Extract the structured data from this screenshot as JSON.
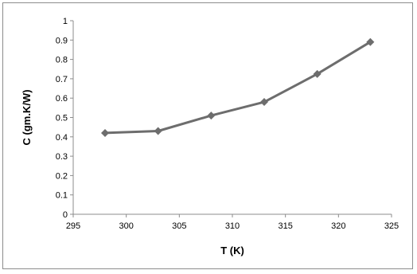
{
  "chart_data": {
    "type": "line",
    "title": "",
    "xlabel": "T (K)",
    "ylabel": "C  (gm.K/W)",
    "xlim": [
      295,
      325
    ],
    "ylim": [
      0,
      1
    ],
    "xticks": [
      295,
      300,
      305,
      310,
      315,
      320,
      325
    ],
    "yticks": [
      0,
      0.1,
      0.2,
      0.3,
      0.4,
      0.5,
      0.6,
      0.7,
      0.8,
      0.9,
      1
    ],
    "xtick_labels": [
      "295",
      "300",
      "305",
      "310",
      "315",
      "320",
      "325"
    ],
    "ytick_labels": [
      "0",
      "0.1",
      "0.2",
      "0.3",
      "0.4",
      "0.5",
      "0.6",
      "0.7",
      "0.8",
      "0.9",
      "1"
    ],
    "grid": false,
    "legend": "none",
    "series": [
      {
        "x": [
          298,
          303,
          308,
          313,
          318,
          323
        ],
        "y": [
          0.42,
          0.43,
          0.51,
          0.58,
          0.725,
          0.89
        ],
        "color": "#6d6d6d",
        "marker": "diamond"
      }
    ]
  }
}
